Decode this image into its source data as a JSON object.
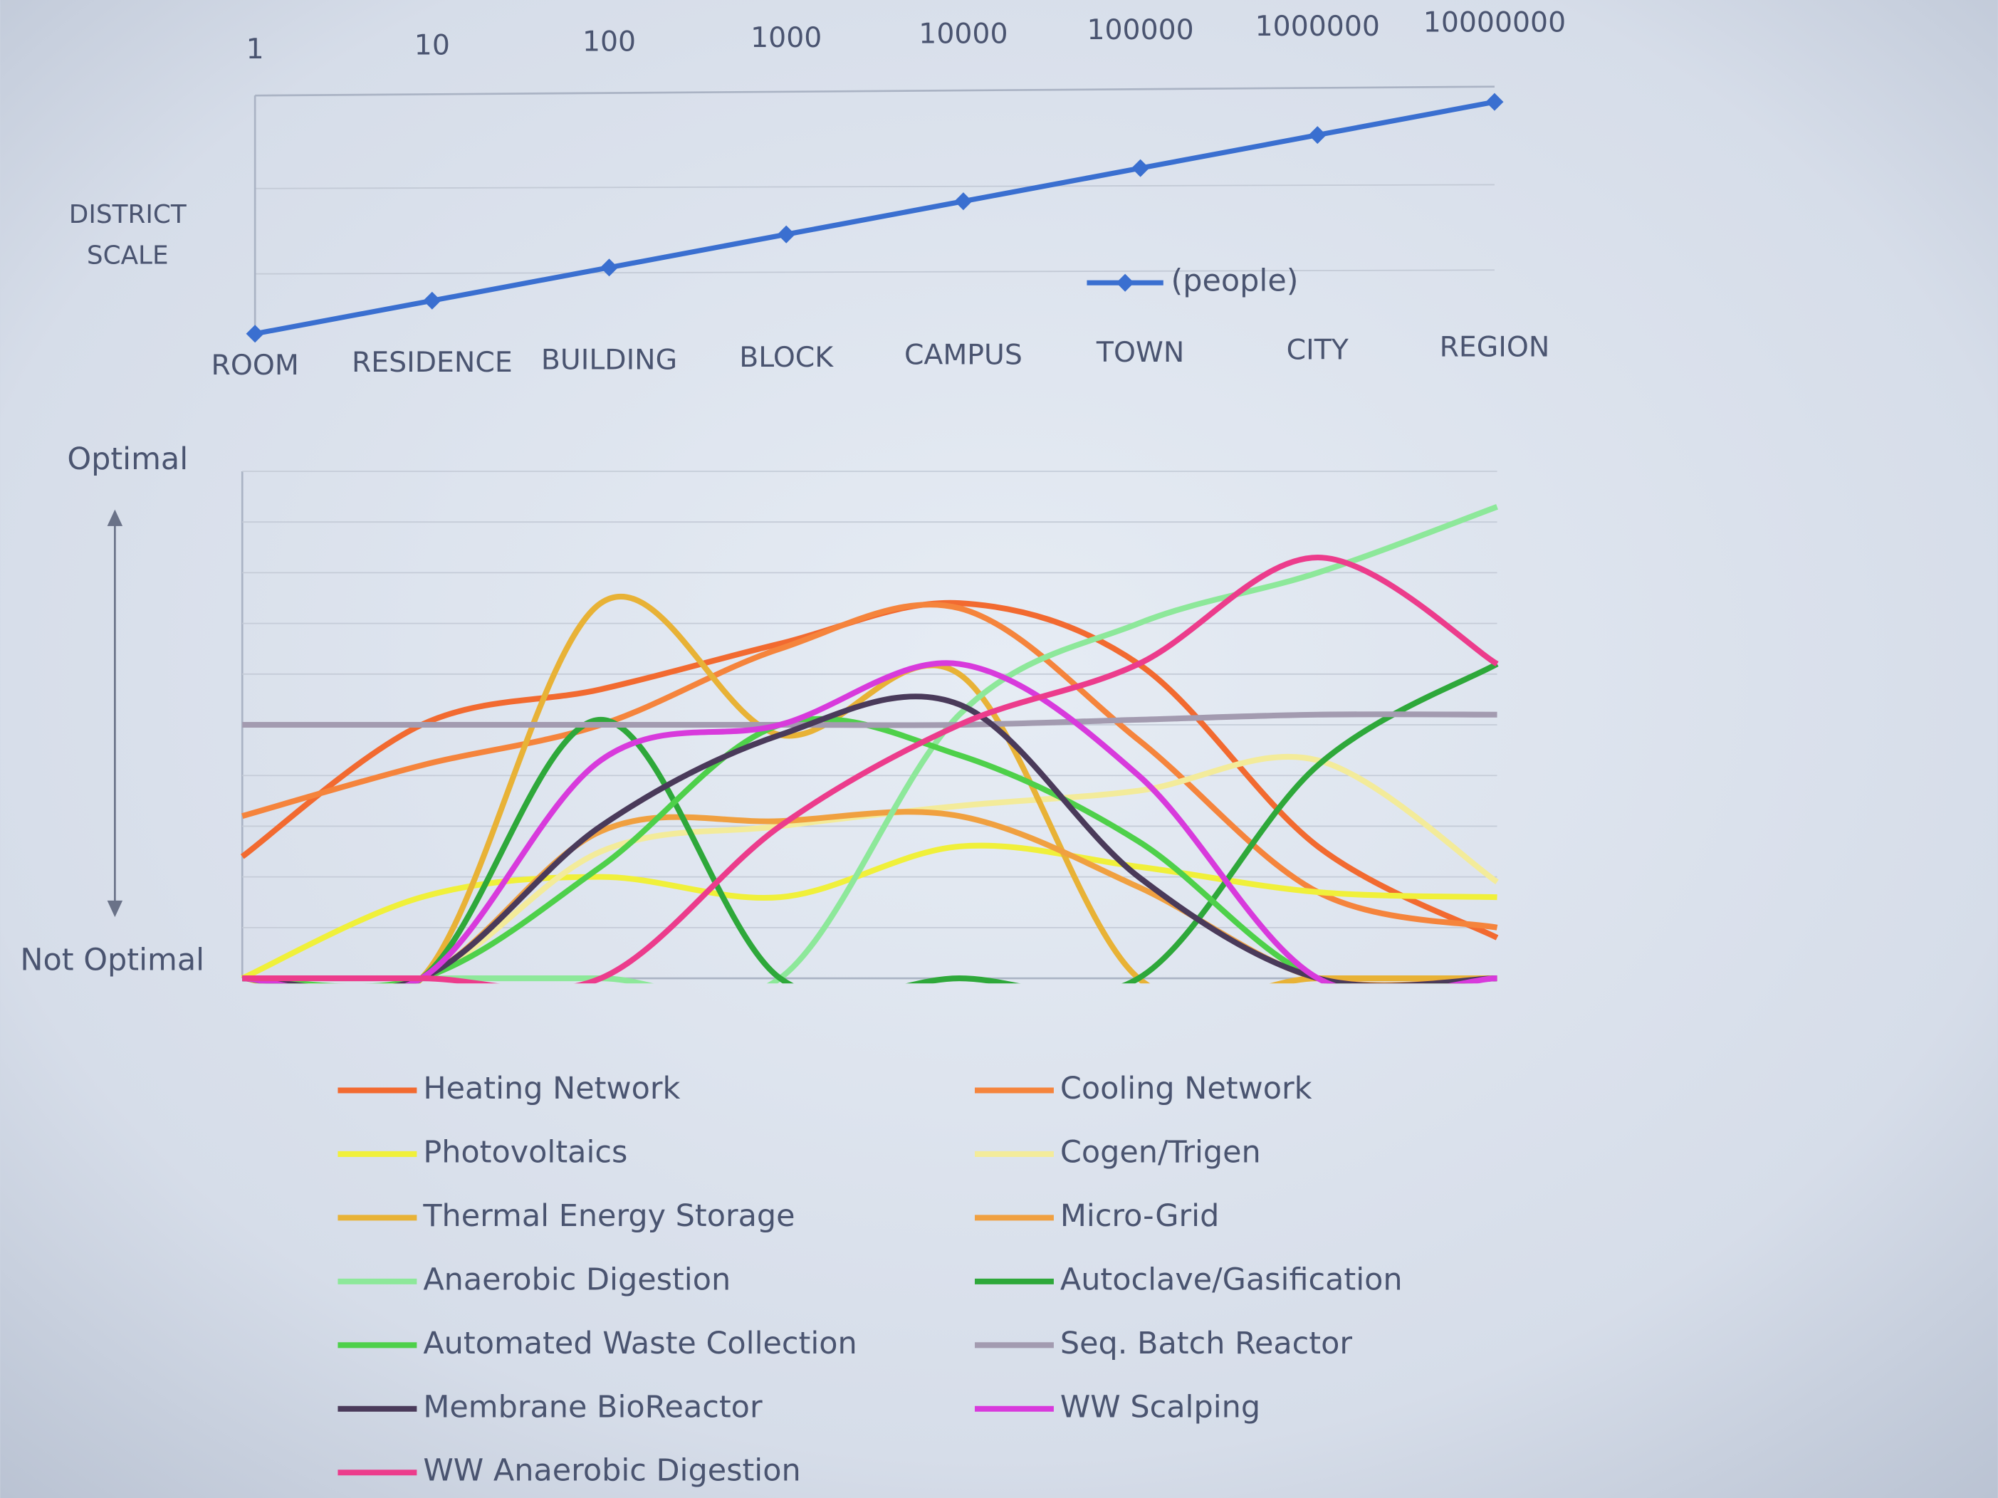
{
  "chart_data": [
    {
      "type": "line",
      "categories": [
        "ROOM",
        "RESIDENCE",
        "BUILDING",
        "BLOCK",
        "CAMPUS",
        "TOWN",
        "CITY",
        "REGION"
      ],
      "series": [
        {
          "name": "(people)",
          "color": "#3a6fd0",
          "values": [
            1,
            10,
            100,
            1000,
            10000,
            100000,
            1000000,
            10000000
          ]
        }
      ],
      "y_label": "DISTRICT SCALE",
      "log_scale": true,
      "ylim": [
        1,
        10000000
      ],
      "legend": "bottom-right"
    },
    {
      "type": "line",
      "smooth": true,
      "categories": [
        null,
        null,
        null,
        null,
        null,
        null,
        null,
        null
      ],
      "y_label_top": "Optimal",
      "y_label_bottom": "Not Optimal",
      "ylim": [
        0,
        10
      ],
      "yticks": [
        0,
        1,
        2,
        3,
        4,
        5,
        6,
        7,
        8,
        9,
        10
      ],
      "ytick_labels": false,
      "grid": true,
      "legend": "bottom",
      "series": [
        {
          "name": "Heating Network",
          "color": "#f26a30",
          "values": [
            2.4,
            5.0,
            5.7,
            6.6,
            7.4,
            6.2,
            2.6,
            0.8
          ]
        },
        {
          "name": "Cooling Network",
          "color": "#f5843c",
          "values": [
            3.2,
            4.2,
            5.0,
            6.5,
            7.3,
            4.7,
            1.7,
            1.0
          ]
        },
        {
          "name": "Photovoltaics",
          "color": "#f0f03a",
          "values": [
            0,
            1.6,
            2.0,
            1.6,
            2.6,
            2.2,
            1.7,
            1.6
          ]
        },
        {
          "name": "Cogen/Trigen",
          "color": "#f3eb9a",
          "values": [
            0,
            0,
            2.5,
            3.0,
            3.4,
            3.7,
            4.3,
            1.9
          ]
        },
        {
          "name": "Thermal Energy Storage",
          "color": "#e8b236",
          "values": [
            0,
            0,
            7.4,
            4.8,
            6.0,
            0,
            0,
            0
          ]
        },
        {
          "name": "Micro-Grid",
          "color": "#f0a040",
          "values": [
            0,
            0,
            2.9,
            3.1,
            3.2,
            1.8,
            0,
            0
          ]
        },
        {
          "name": "Anaerobic Digestion",
          "color": "#8de89a",
          "values": [
            0,
            0,
            0,
            0,
            5.2,
            7.0,
            8.0,
            9.3
          ]
        },
        {
          "name": "Autoclave/Gasification",
          "color": "#2ea83a",
          "values": [
            0,
            0,
            5.1,
            0,
            0,
            0,
            4.2,
            6.2
          ]
        },
        {
          "name": "Automated Waste Collection",
          "color": "#4ed04a",
          "values": [
            0,
            0,
            2.2,
            5.0,
            4.4,
            2.7,
            0,
            0
          ]
        },
        {
          "name": "Seq. Batch Reactor",
          "color": "#a39bb0",
          "values": [
            5.0,
            5.0,
            5.0,
            5.0,
            5.0,
            5.1,
            5.2,
            5.2
          ]
        },
        {
          "name": "Membrane BioReactor",
          "color": "#4a3a5a",
          "values": [
            0,
            0,
            3.0,
            4.8,
            5.4,
            2.0,
            0,
            0
          ]
        },
        {
          "name": "WW Scalping",
          "color": "#d83adc",
          "values": [
            0,
            0,
            4.3,
            5.0,
            6.2,
            4.0,
            0,
            0
          ]
        },
        {
          "name": "WW Anaerobic Digestion",
          "color": "#ec3c8c",
          "values": [
            0,
            0,
            0,
            3.0,
            5.0,
            6.2,
            8.3,
            6.2
          ]
        }
      ]
    }
  ]
}
